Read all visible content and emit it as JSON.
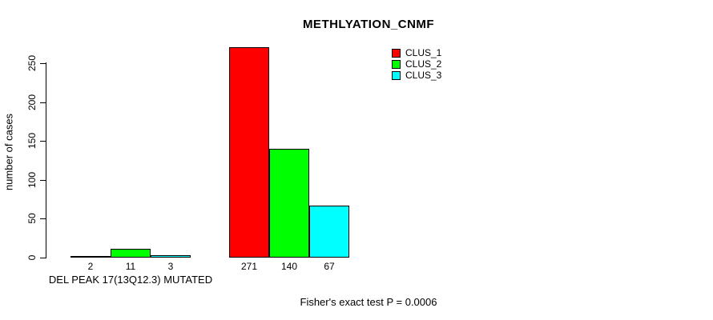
{
  "title": "METHLYATION_CNMF",
  "ylabel": "number of cases",
  "caption": "Fisher's exact test P = 0.0006",
  "legend": [
    {
      "label": "CLUS_1",
      "color": "#ff0000"
    },
    {
      "label": "CLUS_2",
      "color": "#00ff00"
    },
    {
      "label": "CLUS_3",
      "color": "#00ffff"
    }
  ],
  "chart_data": {
    "type": "bar",
    "title": "METHLYATION_CNMF",
    "ylabel": "number of cases",
    "xlabel": "",
    "ylim": [
      0,
      250
    ],
    "yticks": [
      0,
      50,
      100,
      150,
      200,
      250
    ],
    "grid": false,
    "legend_position": "top-right",
    "series": [
      "CLUS_1",
      "CLUS_2",
      "CLUS_3"
    ],
    "colors": [
      "#ff0000",
      "#00ff00",
      "#00ffff"
    ],
    "groups": [
      {
        "label": "DEL PEAK 17(13Q12.3) MUTATED",
        "values": [
          2,
          11,
          3
        ],
        "value_labels": [
          "2",
          "11",
          "3"
        ]
      },
      {
        "label": "",
        "values": [
          271,
          140,
          67
        ],
        "value_labels": [
          "271",
          "140",
          "67"
        ]
      }
    ],
    "annotation": "Fisher's exact test P = 0.0006"
  }
}
